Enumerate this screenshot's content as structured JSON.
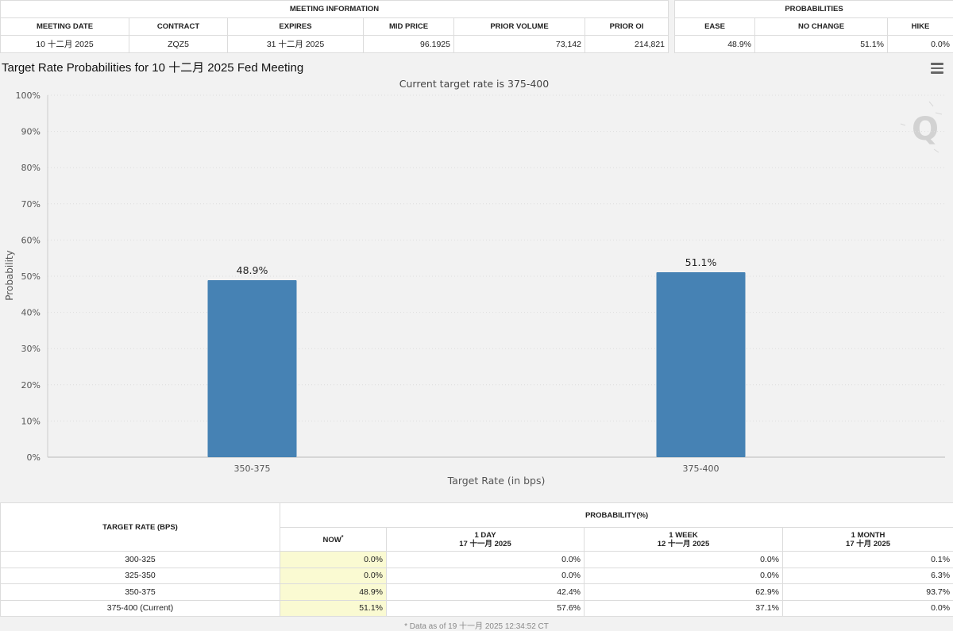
{
  "meeting_info": {
    "section_title": "MEETING INFORMATION",
    "headers": [
      "MEETING DATE",
      "CONTRACT",
      "EXPIRES",
      "MID PRICE",
      "PRIOR VOLUME",
      "PRIOR OI"
    ],
    "values": [
      "10 十二月 2025",
      "ZQZ5",
      "31 十二月 2025",
      "96.1925",
      "73,142",
      "214,821"
    ]
  },
  "probabilities": {
    "section_title": "PROBABILITIES",
    "headers": [
      "EASE",
      "NO CHANGE",
      "HIKE"
    ],
    "values": [
      "48.9%",
      "51.1%",
      "0.0%"
    ]
  },
  "chart_title": "Target Rate Probabilities for 10 十二月 2025 Fed Meeting",
  "menu_icon": "hamburger-menu-icon",
  "watermark_icon": "q-logo-watermark-icon",
  "chart_data": {
    "type": "bar",
    "title": "",
    "subtitle": "Current target rate is 375-400",
    "categories": [
      "350-375",
      "375-400"
    ],
    "values": [
      48.9,
      51.1
    ],
    "data_labels": [
      "48.9%",
      "51.1%"
    ],
    "xlabel": "Target Rate (in bps)",
    "ylabel": "Probability",
    "ylim": [
      0,
      100
    ],
    "yticks": [
      0,
      10,
      20,
      30,
      40,
      50,
      60,
      70,
      80,
      90,
      100
    ],
    "ytick_labels": [
      "0%",
      "10%",
      "20%",
      "30%",
      "40%",
      "50%",
      "60%",
      "70%",
      "80%",
      "90%",
      "100%"
    ],
    "grid": true,
    "bar_color": "#4682b4"
  },
  "rate_table": {
    "target_rate_header": "TARGET RATE (BPS)",
    "probability_header": "PROBABILITY(%)",
    "columns": [
      {
        "label": "NOW",
        "sup": "*",
        "date": ""
      },
      {
        "label": "1 DAY",
        "date": "17 十一月 2025"
      },
      {
        "label": "1 WEEK",
        "date": "12 十一月 2025"
      },
      {
        "label": "1 MONTH",
        "date": "17 十月 2025"
      }
    ],
    "rows": [
      {
        "rate": "300-325",
        "values": [
          "0.0%",
          "0.0%",
          "0.0%",
          "0.1%"
        ]
      },
      {
        "rate": "325-350",
        "values": [
          "0.0%",
          "0.0%",
          "0.0%",
          "6.3%"
        ]
      },
      {
        "rate": "350-375",
        "values": [
          "48.9%",
          "42.4%",
          "62.9%",
          "93.7%"
        ]
      },
      {
        "rate": "375-400 (Current)",
        "values": [
          "51.1%",
          "57.6%",
          "37.1%",
          "0.0%"
        ]
      }
    ],
    "now_highlight_color": "#fafad2"
  },
  "footnote": "* Data as of 19 十一月 2025 12:34:52 CT"
}
